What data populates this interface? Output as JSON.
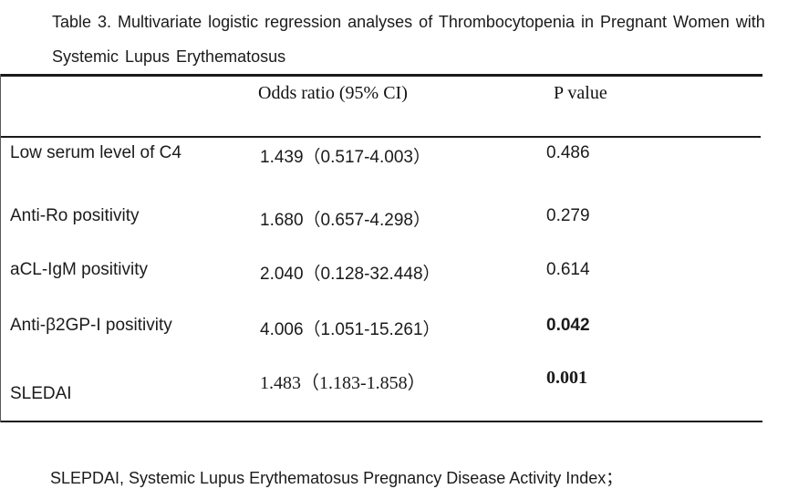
{
  "page": {
    "title_line1": "Table 3. Multivariate logistic regression analyses of Thrombocytopenia in Pregnant Women with",
    "title_line2": "Systemic Lupus Erythematosus",
    "footnote": "SLEPDAI, Systemic Lupus Erythematosus Pregnancy Disease Activity Index；"
  },
  "table": {
    "header": {
      "variable": "",
      "odds_ratio": "Odds ratio (95% CI)",
      "p_value": "P value"
    },
    "rows": [
      {
        "label": "Low serum level of C4",
        "odds_ratio": "1.439（0.517-4.003）",
        "p_value": "0.486"
      },
      {
        "label": "Anti-Ro positivity",
        "odds_ratio": "1.680（0.657-4.298）",
        "p_value": "0.279"
      },
      {
        "label": "aCL-IgM positivity",
        "odds_ratio": "2.040（0.128-32.448）",
        "p_value": "0.614"
      },
      {
        "label": "Anti-β2GP-I positivity",
        "odds_ratio": "4.006（1.051-15.261）",
        "p_value": "0.042"
      },
      {
        "label": "SLEDAI",
        "odds_ratio": "1.483（1.183-1.858）",
        "p_value": "0.001"
      }
    ]
  },
  "colors": {
    "text": "#1b1b1b",
    "rule": "#1a1a1a",
    "background": "#ffffff"
  }
}
